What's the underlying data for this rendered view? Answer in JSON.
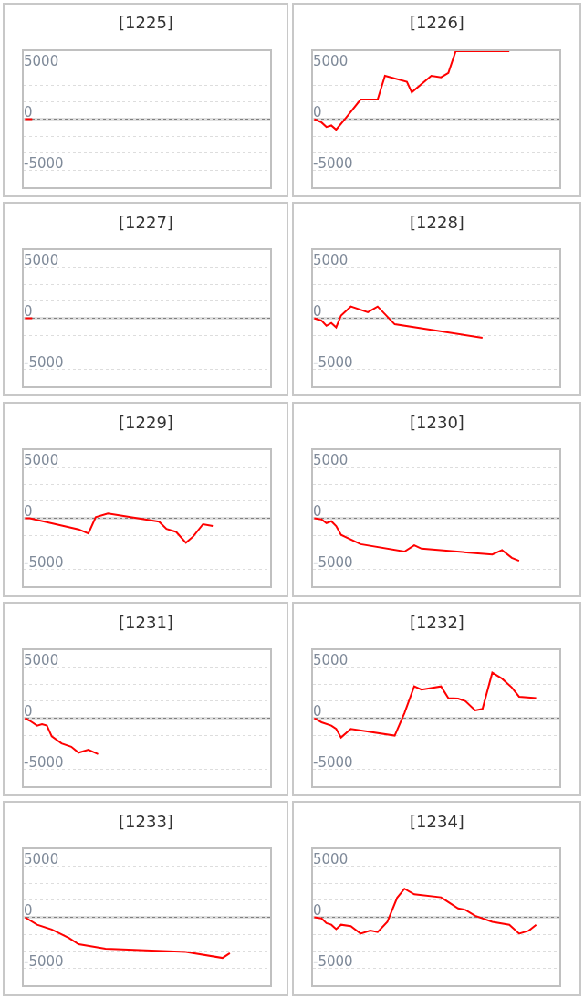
{
  "chart_data": [
    {
      "type": "line",
      "title": "[1225]",
      "categories": [
        null,
        null,
        null,
        null,
        null,
        null,
        null,
        null,
        null,
        null,
        null,
        null,
        null,
        null,
        null,
        null,
        null,
        null,
        null,
        null,
        null,
        null,
        null,
        null,
        null,
        null,
        null,
        null,
        null,
        null,
        null,
        null,
        null,
        null,
        null,
        null,
        null,
        null,
        null,
        null,
        null,
        null,
        null,
        null,
        null,
        null,
        null,
        null,
        null,
        null,
        null,
        null,
        null,
        null,
        null,
        null,
        null,
        null,
        null,
        null,
        null,
        null,
        null,
        null,
        null,
        null,
        null,
        null,
        null,
        null,
        null,
        null,
        null,
        null,
        null,
        null,
        null,
        null,
        null,
        null,
        null,
        null,
        null,
        null,
        null,
        null,
        null,
        null,
        null,
        null,
        null,
        null,
        null,
        null,
        null,
        null,
        null,
        null,
        null,
        null,
        null
      ],
      "values": [
        0,
        null,
        null,
        0,
        null,
        null,
        null,
        null,
        null,
        null,
        null,
        null,
        null,
        null,
        null,
        null,
        null,
        null,
        null,
        null,
        null,
        null,
        null,
        null,
        null,
        null,
        null,
        null,
        null,
        null,
        null,
        null,
        null,
        null,
        null,
        null,
        null,
        null,
        null,
        null,
        null,
        null,
        null,
        null,
        null,
        null,
        null,
        null,
        null,
        null,
        null,
        null,
        null,
        null,
        null,
        null,
        null,
        null,
        null,
        null,
        null,
        null,
        null,
        null,
        null,
        null,
        null,
        null,
        null,
        null,
        null,
        null,
        null,
        null,
        null,
        null,
        null,
        null,
        null,
        null,
        null,
        null,
        null,
        null,
        null,
        null,
        null,
        null,
        null,
        null,
        null,
        null,
        null,
        null,
        null,
        null,
        null,
        null,
        null,
        null,
        null
      ],
      "color": "#ff0000",
      "ylim": [
        -6667,
        6667
      ],
      "yticks": [
        {
          "value": -6667,
          "label": null
        },
        -5000,
        {
          "value": -3333,
          "label": null
        },
        {
          "value": -1667,
          "label": null
        },
        0,
        {
          "value": 1667,
          "label": null
        },
        {
          "value": 3333,
          "label": null
        },
        5000,
        {
          "value": 6667,
          "label": null
        }
      ],
      "tick_labels": "y",
      "grid": "y",
      "ref_lines": [
        {
          "axis": "y",
          "value": 0,
          "color": "#808080"
        }
      ]
    },
    {
      "type": "line",
      "title": "[1226]",
      "categories": [
        null,
        null,
        null,
        null,
        null,
        null,
        null,
        null,
        null,
        null,
        null,
        null,
        null,
        null,
        null,
        null,
        null,
        null,
        null,
        null,
        null,
        null,
        null,
        null,
        null,
        null,
        null,
        null,
        null,
        null,
        null,
        null,
        null,
        null,
        null,
        null,
        null,
        null,
        null,
        null,
        null,
        null,
        null,
        null,
        null,
        null,
        null,
        null,
        null,
        null,
        null,
        null,
        null,
        null,
        null,
        null,
        null,
        null,
        null,
        null,
        null,
        null,
        null,
        null,
        null,
        null,
        null,
        null,
        null,
        null,
        null,
        null,
        null,
        null,
        null,
        null,
        null,
        null,
        null,
        null,
        null,
        null,
        null,
        null,
        null,
        null,
        null,
        null,
        null,
        null,
        null,
        null,
        null,
        null,
        null,
        null,
        null,
        null,
        null,
        null,
        null
      ],
      "values": [
        0,
        null,
        null,
        -330,
        null,
        -770,
        null,
        -620,
        null,
        -1030,
        null,
        null,
        null,
        120,
        null,
        null,
        null,
        null,
        null,
        1920,
        null,
        null,
        null,
        null,
        null,
        null,
        1920,
        null,
        null,
        4250,
        null,
        null,
        null,
        null,
        null,
        null,
        null,
        null,
        3660,
        null,
        2630,
        null,
        null,
        null,
        null,
        null,
        null,
        null,
        4250,
        null,
        null,
        null,
        4100,
        null,
        null,
        4540,
        null,
        null,
        6667,
        null,
        null,
        null,
        null,
        null,
        null,
        null,
        null,
        null,
        null,
        null,
        null,
        null,
        null,
        null,
        null,
        null,
        null,
        null,
        null,
        null,
        6667,
        null,
        null,
        null,
        null,
        null,
        null,
        null,
        null,
        null,
        null,
        null,
        null,
        null,
        null,
        null,
        null,
        null,
        null,
        null,
        null
      ],
      "color": "#ff0000",
      "ylim": [
        -6667,
        6667
      ],
      "yticks": [
        {
          "value": -6667,
          "label": null
        },
        -5000,
        {
          "value": -3333,
          "label": null
        },
        {
          "value": -1667,
          "label": null
        },
        0,
        {
          "value": 1667,
          "label": null
        },
        {
          "value": 3333,
          "label": null
        },
        5000,
        {
          "value": 6667,
          "label": null
        }
      ],
      "tick_labels": "y",
      "grid": "y",
      "ref_lines": [
        {
          "axis": "y",
          "value": 0,
          "color": "#808080"
        }
      ]
    },
    {
      "type": "line",
      "title": "[1227]",
      "categories": [
        null,
        null,
        null,
        null,
        null,
        null,
        null,
        null,
        null,
        null,
        null,
        null,
        null,
        null,
        null,
        null,
        null,
        null,
        null,
        null,
        null,
        null,
        null,
        null,
        null,
        null,
        null,
        null,
        null,
        null,
        null,
        null,
        null,
        null,
        null,
        null,
        null,
        null,
        null,
        null,
        null,
        null,
        null,
        null,
        null,
        null,
        null,
        null,
        null,
        null,
        null,
        null,
        null,
        null,
        null,
        null,
        null,
        null,
        null,
        null,
        null,
        null,
        null,
        null,
        null,
        null,
        null,
        null,
        null,
        null,
        null,
        null,
        null,
        null,
        null,
        null,
        null,
        null,
        null,
        null,
        null,
        null,
        null,
        null,
        null,
        null,
        null,
        null,
        null,
        null,
        null,
        null,
        null,
        null,
        null,
        null,
        null,
        null,
        null,
        null,
        null
      ],
      "values": [
        0,
        null,
        null,
        0,
        null,
        null,
        null,
        null,
        null,
        null,
        null,
        null,
        null,
        null,
        null,
        null,
        null,
        null,
        null,
        null,
        null,
        null,
        null,
        null,
        null,
        null,
        null,
        null,
        null,
        null,
        null,
        null,
        null,
        null,
        null,
        null,
        null,
        null,
        null,
        null,
        null,
        null,
        null,
        null,
        null,
        null,
        null,
        null,
        null,
        null,
        null,
        null,
        null,
        null,
        null,
        null,
        null,
        null,
        null,
        null,
        null,
        null,
        null,
        null,
        null,
        null,
        null,
        null,
        null,
        null,
        null,
        null,
        null,
        null,
        null,
        null,
        null,
        null,
        null,
        null,
        null,
        null,
        null,
        null,
        null,
        null,
        null,
        null,
        null,
        null,
        null,
        null,
        null,
        null,
        null,
        null,
        null,
        null,
        null,
        null,
        null
      ],
      "color": "#ff0000",
      "ylim": [
        -6667,
        6667
      ],
      "yticks": [
        {
          "value": -6667,
          "label": null
        },
        -5000,
        {
          "value": -3333,
          "label": null
        },
        {
          "value": -1667,
          "label": null
        },
        0,
        {
          "value": 1667,
          "label": null
        },
        {
          "value": 3333,
          "label": null
        },
        5000,
        {
          "value": 6667,
          "label": null
        }
      ],
      "tick_labels": "y",
      "grid": "y",
      "ref_lines": [
        {
          "axis": "y",
          "value": 0,
          "color": "#808080"
        }
      ]
    },
    {
      "type": "line",
      "title": "[1228]",
      "categories": [
        null,
        null,
        null,
        null,
        null,
        null,
        null,
        null,
        null,
        null,
        null,
        null,
        null,
        null,
        null,
        null,
        null,
        null,
        null,
        null,
        null,
        null,
        null,
        null,
        null,
        null,
        null,
        null,
        null,
        null,
        null,
        null,
        null,
        null,
        null,
        null,
        null,
        null,
        null,
        null,
        null,
        null,
        null,
        null,
        null,
        null,
        null,
        null,
        null,
        null,
        null,
        null,
        null,
        null,
        null,
        null,
        null,
        null,
        null,
        null,
        null,
        null,
        null,
        null,
        null,
        null,
        null,
        null,
        null,
        null,
        null,
        null,
        null,
        null,
        null,
        null,
        null,
        null,
        null,
        null,
        null,
        null,
        null,
        null,
        null,
        null,
        null,
        null,
        null,
        null,
        null,
        null,
        null,
        null,
        null,
        null,
        null,
        null,
        null,
        null,
        null
      ],
      "values": [
        0,
        null,
        null,
        -240,
        null,
        -740,
        null,
        -470,
        null,
        -890,
        null,
        270,
        null,
        null,
        null,
        1150,
        null,
        null,
        null,
        null,
        null,
        null,
        590,
        null,
        null,
        null,
        1150,
        null,
        null,
        null,
        null,
        null,
        null,
        -590,
        null,
        null,
        null,
        null,
        null,
        null,
        null,
        null,
        null,
        null,
        null,
        null,
        null,
        null,
        null,
        null,
        null,
        null,
        null,
        null,
        null,
        null,
        null,
        null,
        null,
        null,
        null,
        null,
        null,
        null,
        null,
        null,
        null,
        null,
        null,
        -1920,
        null,
        null,
        null,
        null,
        null,
        null,
        null,
        null,
        null,
        null,
        null,
        null,
        null,
        null,
        null,
        null,
        null,
        null,
        null,
        null,
        null,
        null,
        null,
        null,
        null,
        null,
        null,
        null,
        null,
        null,
        null
      ],
      "color": "#ff0000",
      "ylim": [
        -6667,
        6667
      ],
      "yticks": [
        {
          "value": -6667,
          "label": null
        },
        -5000,
        {
          "value": -3333,
          "label": null
        },
        {
          "value": -1667,
          "label": null
        },
        0,
        {
          "value": 1667,
          "label": null
        },
        {
          "value": 3333,
          "label": null
        },
        5000,
        {
          "value": 6667,
          "label": null
        }
      ],
      "tick_labels": "y",
      "grid": "y",
      "ref_lines": [
        {
          "axis": "y",
          "value": 0,
          "color": "#808080"
        }
      ]
    },
    {
      "type": "line",
      "title": "[1229]",
      "categories": [
        null,
        null,
        null,
        null,
        null,
        null,
        null,
        null,
        null,
        null,
        null,
        null,
        null,
        null,
        null,
        null,
        null,
        null,
        null,
        null,
        null,
        null,
        null,
        null,
        null,
        null,
        null,
        null,
        null,
        null,
        null,
        null,
        null,
        null,
        null,
        null,
        null,
        null,
        null,
        null,
        null,
        null,
        null,
        null,
        null,
        null,
        null,
        null,
        null,
        null,
        null,
        null,
        null,
        null,
        null,
        null,
        null,
        null,
        null,
        null,
        null,
        null,
        null,
        null,
        null,
        null,
        null,
        null,
        null,
        null,
        null,
        null,
        null,
        null,
        null,
        null,
        null,
        null,
        null,
        null,
        null,
        null,
        null,
        null,
        null,
        null,
        null,
        null,
        null,
        null,
        null,
        null,
        null,
        null,
        null,
        null,
        null,
        null,
        null,
        null,
        null
      ],
      "values": [
        0,
        null,
        0,
        null,
        null,
        null,
        null,
        null,
        null,
        null,
        null,
        null,
        null,
        null,
        null,
        null,
        null,
        null,
        null,
        null,
        null,
        null,
        -1090,
        null,
        null,
        null,
        -1490,
        null,
        null,
        110,
        null,
        null,
        null,
        null,
        470,
        null,
        null,
        null,
        null,
        null,
        null,
        null,
        null,
        null,
        null,
        null,
        null,
        null,
        null,
        null,
        null,
        null,
        null,
        null,
        null,
        -330,
        null,
        null,
        -1050,
        null,
        null,
        null,
        -1340,
        null,
        null,
        null,
        -2400,
        null,
        null,
        -1780,
        null,
        null,
        null,
        -580,
        null,
        null,
        null,
        -760,
        null,
        null,
        null,
        null,
        null,
        null,
        null,
        null,
        null,
        null,
        null,
        null,
        null,
        null,
        null,
        null,
        null,
        null,
        null,
        null,
        null,
        null,
        null
      ],
      "color": "#ff0000",
      "ylim": [
        -6667,
        6667
      ],
      "yticks": [
        {
          "value": -6667,
          "label": null
        },
        -5000,
        {
          "value": -3333,
          "label": null
        },
        {
          "value": -1667,
          "label": null
        },
        0,
        {
          "value": 1667,
          "label": null
        },
        {
          "value": 3333,
          "label": null
        },
        5000,
        {
          "value": 6667,
          "label": null
        }
      ],
      "tick_labels": "y",
      "grid": "y",
      "ref_lines": [
        {
          "axis": "y",
          "value": 0,
          "color": "#808080"
        }
      ]
    },
    {
      "type": "line",
      "title": "[1230]",
      "categories": [
        null,
        null,
        null,
        null,
        null,
        null,
        null,
        null,
        null,
        null,
        null,
        null,
        null,
        null,
        null,
        null,
        null,
        null,
        null,
        null,
        null,
        null,
        null,
        null,
        null,
        null,
        null,
        null,
        null,
        null,
        null,
        null,
        null,
        null,
        null,
        null,
        null,
        null,
        null,
        null,
        null,
        null,
        null,
        null,
        null,
        null,
        null,
        null,
        null,
        null,
        null,
        null,
        null,
        null,
        null,
        null,
        null,
        null,
        null,
        null,
        null,
        null,
        null,
        null,
        null,
        null,
        null,
        null,
        null,
        null,
        null,
        null,
        null,
        null,
        null,
        null,
        null,
        null,
        null,
        null,
        null,
        null,
        null,
        null,
        null,
        null,
        null,
        null,
        null,
        null,
        null,
        null,
        null,
        null,
        null,
        null,
        null,
        null,
        null,
        null,
        null
      ],
      "values": [
        0,
        null,
        null,
        -110,
        null,
        -470,
        null,
        -290,
        null,
        -760,
        null,
        -1630,
        null,
        null,
        null,
        null,
        null,
        null,
        null,
        -2540,
        null,
        null,
        null,
        null,
        null,
        null,
        null,
        null,
        null,
        null,
        null,
        null,
        null,
        null,
        null,
        null,
        null,
        -3270,
        null,
        null,
        null,
        -2650,
        null,
        null,
        -2980,
        null,
        null,
        null,
        null,
        null,
        null,
        null,
        null,
        null,
        null,
        null,
        null,
        null,
        null,
        null,
        null,
        null,
        null,
        null,
        null,
        null,
        null,
        null,
        null,
        null,
        null,
        null,
        null,
        -3560,
        null,
        null,
        null,
        -3120,
        null,
        null,
        null,
        -3880,
        null,
        null,
        -4170,
        null,
        null,
        null,
        null,
        null,
        null,
        null,
        null,
        null,
        null,
        null,
        null,
        null,
        null,
        null,
        null
      ],
      "color": "#ff0000",
      "ylim": [
        -6667,
        6667
      ],
      "yticks": [
        {
          "value": -6667,
          "label": null
        },
        -5000,
        {
          "value": -3333,
          "label": null
        },
        {
          "value": -1667,
          "label": null
        },
        0,
        {
          "value": 1667,
          "label": null
        },
        {
          "value": 3333,
          "label": null
        },
        5000,
        {
          "value": 6667,
          "label": null
        }
      ],
      "tick_labels": "y",
      "grid": "y",
      "ref_lines": [
        {
          "axis": "y",
          "value": 0,
          "color": "#808080"
        }
      ]
    },
    {
      "type": "line",
      "title": "[1231]",
      "categories": [
        null,
        null,
        null,
        null,
        null,
        null,
        null,
        null,
        null,
        null,
        null,
        null,
        null,
        null,
        null,
        null,
        null,
        null,
        null,
        null,
        null,
        null,
        null,
        null,
        null,
        null,
        null,
        null,
        null,
        null,
        null,
        null,
        null,
        null,
        null,
        null,
        null,
        null,
        null,
        null,
        null,
        null,
        null,
        null,
        null,
        null,
        null,
        null,
        null,
        null,
        null,
        null,
        null,
        null,
        null,
        null,
        null,
        null,
        null,
        null,
        null,
        null,
        null,
        null,
        null,
        null,
        null,
        null,
        null,
        null,
        null,
        null,
        null,
        null,
        null,
        null,
        null,
        null,
        null,
        null,
        null,
        null,
        null,
        null,
        null,
        null,
        null,
        null,
        null,
        null,
        null,
        null,
        null,
        null,
        null,
        null,
        null,
        null,
        null,
        null,
        null
      ],
      "values": [
        0,
        null,
        -250,
        null,
        null,
        -730,
        null,
        -580,
        null,
        -730,
        null,
        -1780,
        null,
        null,
        null,
        -2470,
        null,
        null,
        null,
        -2800,
        null,
        null,
        -3380,
        null,
        null,
        null,
        -3090,
        null,
        null,
        null,
        -3520,
        null,
        null,
        null,
        null,
        null,
        null,
        null,
        null,
        null,
        null,
        null,
        null,
        null,
        null,
        null,
        null,
        null,
        null,
        null,
        null,
        null,
        null,
        null,
        null,
        null,
        null,
        null,
        null,
        null,
        null,
        null,
        null,
        null,
        null,
        null,
        null,
        null,
        null,
        null,
        null,
        null,
        null,
        null,
        null,
        null,
        null,
        null,
        null,
        null,
        null,
        null,
        null,
        null,
        null,
        null,
        null,
        null,
        null,
        null,
        null,
        null,
        null,
        null,
        null,
        null,
        null,
        null,
        null,
        null,
        null
      ],
      "color": "#ff0000",
      "ylim": [
        -6667,
        6667
      ],
      "yticks": [
        {
          "value": -6667,
          "label": null
        },
        -5000,
        {
          "value": -3333,
          "label": null
        },
        {
          "value": -1667,
          "label": null
        },
        0,
        {
          "value": 1667,
          "label": null
        },
        {
          "value": 3333,
          "label": null
        },
        5000,
        {
          "value": 6667,
          "label": null
        }
      ],
      "tick_labels": "y",
      "grid": "y",
      "ref_lines": [
        {
          "axis": "y",
          "value": 0,
          "color": "#808080"
        }
      ]
    },
    {
      "type": "line",
      "title": "[1232]",
      "categories": [
        null,
        null,
        null,
        null,
        null,
        null,
        null,
        null,
        null,
        null,
        null,
        null,
        null,
        null,
        null,
        null,
        null,
        null,
        null,
        null,
        null,
        null,
        null,
        null,
        null,
        null,
        null,
        null,
        null,
        null,
        null,
        null,
        null,
        null,
        null,
        null,
        null,
        null,
        null,
        null,
        null,
        null,
        null,
        null,
        null,
        null,
        null,
        null,
        null,
        null,
        null,
        null,
        null,
        null,
        null,
        null,
        null,
        null,
        null,
        null,
        null,
        null,
        null,
        null,
        null,
        null,
        null,
        null,
        null,
        null,
        null,
        null,
        null,
        null,
        null,
        null,
        null,
        null,
        null,
        null,
        null,
        null,
        null,
        null,
        null,
        null,
        null,
        null,
        null,
        null,
        null,
        null,
        null,
        null,
        null,
        null,
        null,
        null,
        null,
        null,
        null
      ],
      "values": [
        0,
        null,
        null,
        -400,
        null,
        null,
        null,
        -730,
        null,
        -1050,
        null,
        -1890,
        null,
        null,
        null,
        -1050,
        null,
        null,
        null,
        null,
        null,
        null,
        null,
        null,
        null,
        null,
        null,
        null,
        null,
        null,
        null,
        null,
        null,
        -1710,
        null,
        null,
        null,
        510,
        null,
        null,
        null,
        3120,
        null,
        null,
        2800,
        null,
        null,
        null,
        null,
        null,
        null,
        null,
        3120,
        null,
        null,
        1960,
        null,
        null,
        null,
        1920,
        null,
        null,
        1670,
        null,
        null,
        null,
        760,
        null,
        null,
        910,
        null,
        null,
        null,
        4460,
        null,
        null,
        null,
        3880,
        null,
        null,
        null,
        3010,
        null,
        null,
        2110,
        null,
        null,
        null,
        null,
        null,
        null,
        1960,
        null,
        null,
        null,
        null,
        null,
        null,
        null,
        null,
        null
      ],
      "color": "#ff0000",
      "ylim": [
        -6667,
        6667
      ],
      "yticks": [
        {
          "value": -6667,
          "label": null
        },
        -5000,
        {
          "value": -3333,
          "label": null
        },
        {
          "value": -1667,
          "label": null
        },
        0,
        {
          "value": 1667,
          "label": null
        },
        {
          "value": 3333,
          "label": null
        },
        5000,
        {
          "value": 6667,
          "label": null
        }
      ],
      "tick_labels": "y",
      "grid": "y",
      "ref_lines": [
        {
          "axis": "y",
          "value": 0,
          "color": "#808080"
        }
      ]
    },
    {
      "type": "line",
      "title": "[1233]",
      "categories": [
        null,
        null,
        null,
        null,
        null,
        null,
        null,
        null,
        null,
        null,
        null,
        null,
        null,
        null,
        null,
        null,
        null,
        null,
        null,
        null,
        null,
        null,
        null,
        null,
        null,
        null,
        null,
        null,
        null,
        null,
        null,
        null,
        null,
        null,
        null,
        null,
        null,
        null,
        null,
        null,
        null,
        null,
        null,
        null,
        null,
        null,
        null,
        null,
        null,
        null,
        null,
        null,
        null,
        null,
        null,
        null,
        null,
        null,
        null,
        null,
        null,
        null,
        null,
        null,
        null,
        null,
        null,
        null,
        null,
        null,
        null,
        null,
        null,
        null,
        null,
        null,
        null,
        null,
        null,
        null,
        null,
        null,
        null,
        null,
        null,
        null,
        null,
        null,
        null,
        null,
        null,
        null,
        null,
        null,
        null,
        null,
        null,
        null,
        null,
        null,
        null
      ],
      "values": [
        0,
        null,
        null,
        null,
        null,
        -730,
        null,
        null,
        null,
        null,
        null,
        -1200,
        null,
        null,
        null,
        null,
        null,
        null,
        -2030,
        null,
        null,
        null,
        -2650,
        null,
        null,
        null,
        null,
        null,
        null,
        null,
        null,
        null,
        null,
        -3090,
        null,
        null,
        null,
        null,
        null,
        null,
        null,
        null,
        null,
        null,
        null,
        null,
        null,
        null,
        null,
        null,
        null,
        null,
        null,
        null,
        null,
        null,
        null,
        null,
        null,
        null,
        null,
        null,
        null,
        null,
        null,
        null,
        -3410,
        null,
        null,
        null,
        null,
        null,
        null,
        null,
        null,
        null,
        null,
        null,
        null,
        null,
        null,
        -3990,
        null,
        null,
        -3520,
        null,
        null,
        null,
        null,
        null,
        null,
        null,
        null,
        null,
        null,
        null,
        null,
        null,
        null,
        null,
        null
      ],
      "color": "#ff0000",
      "ylim": [
        -6667,
        6667
      ],
      "yticks": [
        {
          "value": -6667,
          "label": null
        },
        -5000,
        {
          "value": -3333,
          "label": null
        },
        {
          "value": -1667,
          "label": null
        },
        0,
        {
          "value": 1667,
          "label": null
        },
        {
          "value": 3333,
          "label": null
        },
        5000,
        {
          "value": 6667,
          "label": null
        }
      ],
      "tick_labels": "y",
      "grid": "y",
      "ref_lines": [
        {
          "axis": "y",
          "value": 0,
          "color": "#808080"
        }
      ]
    },
    {
      "type": "line",
      "title": "[1234]",
      "categories": [
        null,
        null,
        null,
        null,
        null,
        null,
        null,
        null,
        null,
        null,
        null,
        null,
        null,
        null,
        null,
        null,
        null,
        null,
        null,
        null,
        null,
        null,
        null,
        null,
        null,
        null,
        null,
        null,
        null,
        null,
        null,
        null,
        null,
        null,
        null,
        null,
        null,
        null,
        null,
        null,
        null,
        null,
        null,
        null,
        null,
        null,
        null,
        null,
        null,
        null,
        null,
        null,
        null,
        null,
        null,
        null,
        null,
        null,
        null,
        null,
        null,
        null,
        null,
        null,
        null,
        null,
        null,
        null,
        null,
        null,
        null,
        null,
        null,
        null,
        null,
        null,
        null,
        null,
        null,
        null,
        null,
        null,
        null,
        null,
        null,
        null,
        null,
        null,
        null,
        null,
        null,
        null,
        null,
        null,
        null,
        null,
        null,
        null,
        null,
        null,
        null
      ],
      "values": [
        0,
        null,
        null,
        -110,
        null,
        -580,
        null,
        -730,
        null,
        -1160,
        null,
        -730,
        null,
        null,
        null,
        -870,
        null,
        null,
        null,
        -1600,
        null,
        null,
        null,
        -1310,
        null,
        null,
        -1450,
        null,
        null,
        null,
        -440,
        null,
        null,
        null,
        1920,
        null,
        null,
        2800,
        null,
        null,
        null,
        2250,
        null,
        null,
        null,
        null,
        null,
        null,
        null,
        null,
        null,
        null,
        1960,
        null,
        null,
        1490,
        null,
        null,
        null,
        870,
        null,
        null,
        730,
        null,
        null,
        null,
        150,
        null,
        null,
        null,
        null,
        null,
        null,
        -440,
        null,
        null,
        null,
        null,
        null,
        null,
        -730,
        null,
        null,
        null,
        -1600,
        null,
        null,
        null,
        -1310,
        null,
        null,
        -730,
        null,
        null,
        null,
        null,
        null,
        null,
        null,
        null,
        null
      ],
      "color": "#ff0000",
      "ylim": [
        -6667,
        6667
      ],
      "yticks": [
        {
          "value": -6667,
          "label": null
        },
        -5000,
        {
          "value": -3333,
          "label": null
        },
        {
          "value": -1667,
          "label": null
        },
        0,
        {
          "value": 1667,
          "label": null
        },
        {
          "value": 3333,
          "label": null
        },
        5000,
        {
          "value": 6667,
          "label": null
        }
      ],
      "tick_labels": "y",
      "grid": "y",
      "ref_lines": [
        {
          "axis": "y",
          "value": 0,
          "color": "#808080"
        }
      ]
    }
  ]
}
